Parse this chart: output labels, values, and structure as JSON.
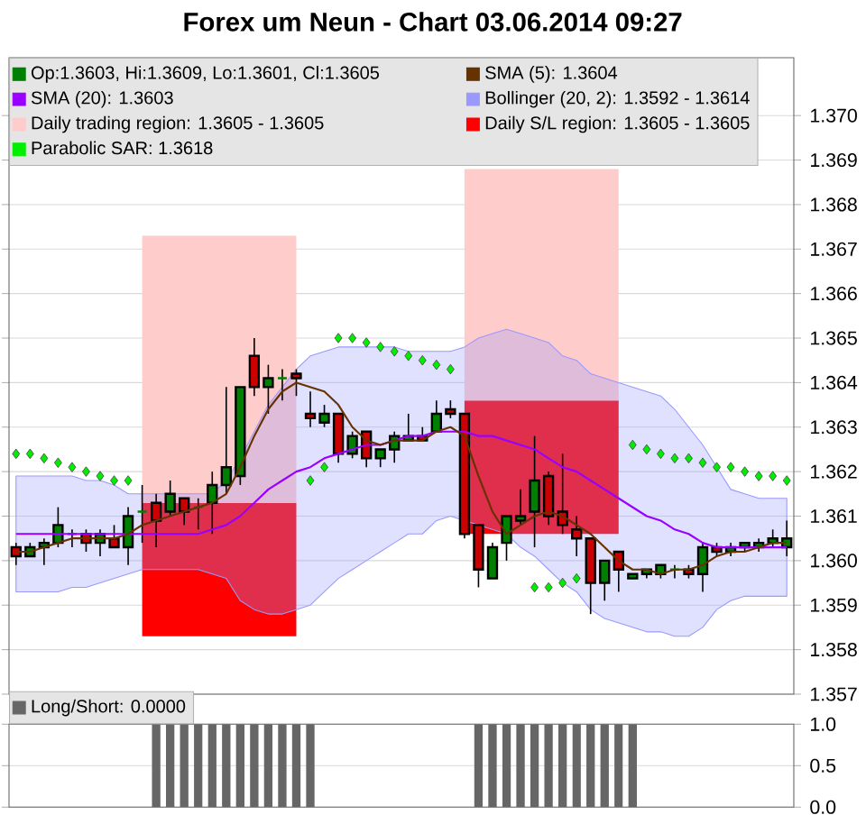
{
  "chart_data": [
    {
      "type": "candlestick",
      "title": "Forex um Neun - Chart 03.06.2014 09:27",
      "categories": [
        null,
        null,
        null,
        null,
        null,
        null,
        null,
        null,
        null,
        null,
        null,
        null,
        null,
        null,
        null,
        null,
        null,
        null,
        null,
        null,
        null,
        null,
        null,
        null,
        null,
        null,
        null,
        null,
        null,
        null,
        null,
        null,
        null,
        null,
        null,
        null,
        null,
        null,
        null,
        null,
        null,
        null,
        null,
        null,
        null,
        null,
        null,
        null,
        null,
        null,
        null,
        null,
        null,
        null,
        null,
        null
      ],
      "series": [
        {
          "type": "candlestick",
          "name": "Op:1.3603, Hi:1.3609, Lo:1.3601, Cl:1.3605",
          "color": "#008000",
          "colors": [
            "#cc0000",
            "#008000",
            "#008000",
            "#008000",
            "#008000",
            "#cc0000",
            "#008000",
            "#cc0000",
            "#008000",
            "#008000",
            "#cc0000",
            "#008000",
            "#cc0000",
            "#008000",
            "#008000",
            "#008000",
            "#008000",
            "#cc0000",
            "#008000",
            "#008000",
            "#cc0000",
            "#cc0000",
            "#008000",
            "#cc0000",
            "#008000",
            "#cc0000",
            "#008000",
            "#008000",
            "#008000",
            "#cc0000",
            "#008000",
            "#cc0000",
            "#cc0000",
            "#cc0000",
            "#008000",
            "#008000",
            "#008000",
            "#008000",
            "#cc0000",
            "#cc0000",
            "#cc0000",
            "#cc0000",
            "#008000",
            "#cc0000",
            "#008000",
            "#008000",
            "#008000",
            "#008000",
            "#cc0000",
            "#008000",
            "#cc0000",
            "#008000",
            "#008000",
            "#008000",
            "#008000",
            "#008000"
          ],
          "ohlc": [
            [
              1.3603,
              1.3604,
              1.3599,
              1.3601
            ],
            [
              1.3601,
              1.3604,
              1.3601,
              1.3603
            ],
            [
              1.3603,
              1.3605,
              1.3599,
              1.3604
            ],
            [
              1.3604,
              1.3612,
              1.3603,
              1.3608
            ],
            [
              1.3606,
              1.3607,
              1.3603,
              1.3606
            ],
            [
              1.3606,
              1.3607,
              1.3602,
              1.3604
            ],
            [
              1.3604,
              1.3607,
              1.3601,
              1.3606
            ],
            [
              1.3605,
              1.3608,
              1.3603,
              1.3603
            ],
            [
              1.3603,
              1.3612,
              1.3599,
              1.361
            ],
            [
              1.3611,
              1.3617,
              1.3604,
              1.3611
            ],
            [
              1.3613,
              1.3615,
              1.3603,
              1.3609
            ],
            [
              1.3611,
              1.3618,
              1.361,
              1.3615
            ],
            [
              1.3614,
              1.3614,
              1.3608,
              1.3611
            ],
            [
              1.3612,
              1.3614,
              1.3607,
              1.3612
            ],
            [
              1.3613,
              1.362,
              1.3606,
              1.3617
            ],
            [
              1.3617,
              1.3639,
              1.3615,
              1.3621
            ],
            [
              1.3619,
              1.3639,
              1.3617,
              1.3639
            ],
            [
              1.3646,
              1.365,
              1.3637,
              1.3639
            ],
            [
              1.3639,
              1.3644,
              1.3633,
              1.3641
            ],
            [
              1.3641,
              1.3643,
              1.3636,
              1.3641
            ],
            [
              1.3642,
              1.3643,
              1.3637,
              1.3641
            ],
            [
              1.3633,
              1.3638,
              1.363,
              1.3632
            ],
            [
              1.3631,
              1.3635,
              1.363,
              1.3633
            ],
            [
              1.3633,
              1.3633,
              1.3622,
              1.3624
            ],
            [
              1.3624,
              1.3629,
              1.3623,
              1.3628
            ],
            [
              1.3629,
              1.3629,
              1.3621,
              1.3623
            ],
            [
              1.3623,
              1.3625,
              1.3621,
              1.3625
            ],
            [
              1.3625,
              1.3629,
              1.3622,
              1.3628
            ],
            [
              1.3627,
              1.3633,
              1.3627,
              1.3628
            ],
            [
              1.3628,
              1.363,
              1.3627,
              1.3627
            ],
            [
              1.3629,
              1.3636,
              1.3629,
              1.3633
            ],
            [
              1.3634,
              1.3636,
              1.3632,
              1.3633
            ],
            [
              1.3633,
              1.3633,
              1.3605,
              1.3606
            ],
            [
              1.3608,
              1.3608,
              1.3594,
              1.3598
            ],
            [
              1.3596,
              1.3604,
              1.3596,
              1.3603
            ],
            [
              1.3604,
              1.361,
              1.36,
              1.361
            ],
            [
              1.3609,
              1.3616,
              1.3608,
              1.361
            ],
            [
              1.3611,
              1.3628,
              1.3603,
              1.3618
            ],
            [
              1.3619,
              1.362,
              1.3608,
              1.361
            ],
            [
              1.3611,
              1.3624,
              1.3606,
              1.3608
            ],
            [
              1.3607,
              1.361,
              1.3601,
              1.3605
            ],
            [
              1.3605,
              1.3605,
              1.3588,
              1.3595
            ],
            [
              1.3595,
              1.36,
              1.3591,
              1.36
            ],
            [
              1.3602,
              1.3602,
              1.3593,
              1.3598
            ],
            [
              1.3596,
              1.3597,
              1.3596,
              1.3597
            ],
            [
              1.3597,
              1.3598,
              1.3596,
              1.3598
            ],
            [
              1.3597,
              1.3599,
              1.3596,
              1.3599
            ],
            [
              1.3598,
              1.3599,
              1.3596,
              1.3598
            ],
            [
              1.3598,
              1.3599,
              1.3596,
              1.3597
            ],
            [
              1.3597,
              1.3604,
              1.3593,
              1.3603
            ],
            [
              1.3603,
              1.3604,
              1.3601,
              1.3602
            ],
            [
              1.3602,
              1.3604,
              1.3601,
              1.3603
            ],
            [
              1.3603,
              1.3604,
              1.3602,
              1.3604
            ],
            [
              1.3603,
              1.3605,
              1.3602,
              1.3604
            ],
            [
              1.3604,
              1.3607,
              1.3603,
              1.3605
            ],
            [
              1.3603,
              1.3609,
              1.3601,
              1.3605
            ]
          ]
        },
        {
          "type": "line",
          "name": "SMA (5): 1.3604",
          "color": "#663300",
          "values": [
            1.3602,
            1.3602,
            1.3603,
            1.3604,
            1.3605,
            1.3605,
            1.3605,
            1.3605,
            1.3606,
            1.3608,
            1.3609,
            1.361,
            1.3611,
            1.3612,
            1.3613,
            1.3615,
            1.3621,
            1.3628,
            1.3634,
            1.3638,
            1.364,
            1.3639,
            1.3638,
            1.3635,
            1.363,
            1.3627,
            1.3626,
            1.3627,
            1.3627,
            1.3627,
            1.3629,
            1.363,
            1.3628,
            1.3619,
            1.3611,
            1.3606,
            1.3608,
            1.361,
            1.3611,
            1.361,
            1.3608,
            1.3606,
            1.3603,
            1.36,
            1.3598,
            1.3598,
            1.3597,
            1.3598,
            1.3598,
            1.3599,
            1.3601,
            1.3602,
            1.3602,
            1.3603,
            1.3604,
            1.3604
          ]
        },
        {
          "type": "line",
          "name": "SMA (20): 1.3603",
          "color": "#9900ff",
          "values": [
            1.3606,
            1.3606,
            1.3606,
            1.3606,
            1.3606,
            1.3606,
            1.3606,
            1.3606,
            1.3606,
            1.3606,
            1.3606,
            1.3606,
            1.3606,
            1.3606,
            1.3607,
            1.3608,
            1.361,
            1.3613,
            1.3616,
            1.3618,
            1.362,
            1.3621,
            1.3623,
            1.3624,
            1.3625,
            1.3626,
            1.3626,
            1.3627,
            1.3628,
            1.3628,
            1.3629,
            1.3629,
            1.3629,
            1.3628,
            1.3628,
            1.3627,
            1.3626,
            1.3625,
            1.3623,
            1.3621,
            1.362,
            1.3618,
            1.3616,
            1.3614,
            1.3612,
            1.361,
            1.3609,
            1.3607,
            1.3606,
            1.3604,
            1.3603,
            1.3603,
            1.3603,
            1.3603,
            1.3603,
            1.3603
          ]
        },
        {
          "type": "area",
          "name": "Bollinger (20, 2): 1.3592 - 1.3614",
          "color": "#9999ff",
          "values": [
            null,
            null,
            null,
            null,
            null,
            null,
            null,
            null,
            null,
            null,
            null,
            null,
            null,
            null,
            null,
            null,
            null,
            null,
            null,
            null,
            null,
            null,
            null,
            null,
            null,
            null,
            null,
            null,
            null,
            null,
            null,
            null,
            null,
            null,
            null,
            null,
            null,
            null,
            null,
            null,
            null,
            null,
            null,
            null,
            null,
            null,
            null,
            null,
            null,
            null,
            null,
            null,
            null,
            null,
            null,
            null
          ],
          "upper": [
            1.3619,
            1.3619,
            1.3619,
            1.3619,
            1.3619,
            1.3618,
            1.3618,
            1.3617,
            1.3615,
            1.3615,
            1.3615,
            1.3615,
            1.3615,
            1.3615,
            1.3615,
            1.3618,
            1.3623,
            1.3629,
            1.3635,
            1.3639,
            1.3643,
            1.3646,
            1.3647,
            1.3648,
            1.3648,
            1.3648,
            1.3648,
            1.3648,
            1.3647,
            1.3647,
            1.3647,
            1.3647,
            1.3648,
            1.365,
            1.3651,
            1.3652,
            1.3651,
            1.365,
            1.3649,
            1.3646,
            1.3645,
            1.3642,
            1.3641,
            1.364,
            1.3639,
            1.3638,
            1.3637,
            1.3634,
            1.363,
            1.3626,
            1.3621,
            1.3616,
            1.3615,
            1.3614,
            1.3614,
            1.3614
          ],
          "lower": [
            1.3593,
            1.3593,
            1.3593,
            1.3593,
            1.3594,
            1.3594,
            1.3595,
            1.3596,
            1.3597,
            1.3598,
            1.3598,
            1.3598,
            1.3598,
            1.3598,
            1.3597,
            1.3596,
            1.3591,
            1.3589,
            1.3588,
            1.3588,
            1.3589,
            1.359,
            1.3593,
            1.3596,
            1.3598,
            1.36,
            1.3602,
            1.3604,
            1.3606,
            1.3606,
            1.3609,
            1.361,
            1.3609,
            1.3608,
            1.3607,
            1.3606,
            1.3603,
            1.3601,
            1.3598,
            1.3595,
            1.3593,
            1.3589,
            1.3587,
            1.3586,
            1.3585,
            1.3584,
            1.3584,
            1.3583,
            1.3583,
            1.3585,
            1.3589,
            1.3591,
            1.3592,
            1.3592,
            1.3592,
            1.3592
          ]
        },
        {
          "type": "area",
          "name": "Daily trading region: 1.3605 - 1.3605",
          "color": "#ffcccc",
          "values": [
            null,
            null,
            null,
            null,
            null,
            null,
            null,
            null,
            null,
            null,
            null,
            null,
            null,
            null,
            null,
            null,
            null,
            null,
            null,
            null,
            null,
            null,
            null,
            null,
            null,
            null,
            null,
            null,
            null,
            null,
            null,
            null,
            null,
            null,
            null,
            null,
            null,
            null,
            null,
            null,
            null,
            null,
            null,
            null,
            null,
            null,
            null,
            null,
            null,
            null,
            null,
            null,
            null,
            null,
            null,
            null
          ],
          "upper": [
            null,
            null,
            null,
            null,
            null,
            null,
            null,
            null,
            null,
            1.3673,
            1.3673,
            1.3673,
            1.3673,
            1.3673,
            1.3673,
            1.3673,
            1.3673,
            1.3673,
            1.3673,
            1.3673,
            1.3673,
            null,
            null,
            null,
            null,
            null,
            null,
            null,
            null,
            null,
            null,
            null,
            1.3688,
            1.3688,
            1.3688,
            1.3688,
            1.3688,
            1.3688,
            1.3688,
            1.3688,
            1.3688,
            1.3688,
            1.3688,
            1.3688,
            null,
            null,
            null,
            null,
            null,
            null,
            null,
            null,
            null,
            null,
            null,
            null
          ],
          "lower": [
            null,
            null,
            null,
            null,
            null,
            null,
            null,
            null,
            null,
            1.3613,
            1.3613,
            1.3613,
            1.3613,
            1.3613,
            1.3613,
            1.3613,
            1.3613,
            1.3613,
            1.3613,
            1.3613,
            1.3613,
            null,
            null,
            null,
            null,
            null,
            null,
            null,
            null,
            null,
            null,
            null,
            1.3636,
            1.3636,
            1.3636,
            1.3636,
            1.3636,
            1.3636,
            1.3636,
            1.3636,
            1.3636,
            1.3636,
            1.3636,
            1.3636,
            null,
            null,
            null,
            null,
            null,
            null,
            null,
            null,
            null,
            null,
            null,
            null
          ]
        },
        {
          "type": "area",
          "name": "Daily S/L region: 1.3605 - 1.3605",
          "color": "#ff0000",
          "values": [
            null,
            null,
            null,
            null,
            null,
            null,
            null,
            null,
            null,
            null,
            null,
            null,
            null,
            null,
            null,
            null,
            null,
            null,
            null,
            null,
            null,
            null,
            null,
            null,
            null,
            null,
            null,
            null,
            null,
            null,
            null,
            null,
            null,
            null,
            null,
            null,
            null,
            null,
            null,
            null,
            null,
            null,
            null,
            null,
            null,
            null,
            null,
            null,
            null,
            null,
            null,
            null,
            null,
            null,
            null,
            null
          ],
          "upper": [
            null,
            null,
            null,
            null,
            null,
            null,
            null,
            null,
            null,
            1.3613,
            1.3613,
            1.3613,
            1.3613,
            1.3613,
            1.3613,
            1.3613,
            1.3613,
            1.3613,
            1.3613,
            1.3613,
            1.3613,
            null,
            null,
            null,
            null,
            null,
            null,
            null,
            null,
            null,
            null,
            null,
            1.3636,
            1.3636,
            1.3636,
            1.3636,
            1.3636,
            1.3636,
            1.3636,
            1.3636,
            1.3636,
            1.3636,
            1.3636,
            1.3636,
            null,
            null,
            null,
            null,
            null,
            null,
            null,
            null,
            null,
            null,
            null,
            null
          ],
          "lower": [
            null,
            null,
            null,
            null,
            null,
            null,
            null,
            null,
            null,
            1.3583,
            1.3583,
            1.3583,
            1.3583,
            1.3583,
            1.3583,
            1.3583,
            1.3583,
            1.3583,
            1.3583,
            1.3583,
            1.3583,
            null,
            null,
            null,
            null,
            null,
            null,
            null,
            null,
            null,
            null,
            null,
            1.3606,
            1.3606,
            1.3606,
            1.3606,
            1.3606,
            1.3606,
            1.3606,
            1.3606,
            1.3606,
            1.3606,
            1.3606,
            1.3606,
            null,
            null,
            null,
            null,
            null,
            null,
            null,
            null,
            null,
            null,
            null,
            null
          ]
        },
        {
          "type": "scatter",
          "name": "Parabolic SAR: 1.3618",
          "color": "#00ee00",
          "marker": "diamond",
          "values": [
            1.3624,
            1.3624,
            1.3623,
            1.3622,
            1.3621,
            1.362,
            1.3619,
            1.3618,
            1.3618,
            null,
            null,
            null,
            null,
            null,
            null,
            null,
            null,
            null,
            null,
            null,
            null,
            1.3618,
            1.3621,
            1.365,
            1.365,
            1.3649,
            1.3648,
            1.3647,
            1.3646,
            1.3645,
            1.3644,
            1.3643,
            null,
            null,
            null,
            null,
            null,
            1.3594,
            1.3594,
            1.3595,
            1.3596,
            null,
            null,
            null,
            1.3626,
            1.3625,
            1.3624,
            1.3623,
            1.3623,
            1.3622,
            1.3621,
            1.3621,
            1.362,
            1.3619,
            1.3619,
            1.3618
          ]
        }
      ],
      "ylim": [
        1.357,
        1.3713
      ],
      "yticks": [
        1.357,
        1.358,
        1.359,
        {
          "value": 1.36,
          "label": "1.360"
        },
        1.361,
        1.362,
        1.363,
        1.364,
        1.365,
        1.366,
        1.367,
        1.368,
        1.369,
        {
          "value": 1.37,
          "label": "1.370"
        }
      ],
      "grid": "y",
      "legend": "top left",
      "tick_labels": "y"
    },
    {
      "type": "bar",
      "categories": [
        null,
        null,
        null,
        null,
        null,
        null,
        null,
        null,
        null,
        null,
        null,
        null,
        null,
        null,
        null,
        null,
        null,
        null,
        null,
        null,
        null,
        null,
        null,
        null,
        null,
        null,
        null,
        null,
        null,
        null,
        null,
        null,
        null,
        null,
        null,
        null,
        null,
        null,
        null,
        null,
        null,
        null,
        null,
        null,
        null,
        null,
        null,
        null,
        null,
        null,
        null,
        null,
        null,
        null,
        null,
        null
      ],
      "series": [
        {
          "name": "Long/Short: 0.0000",
          "color": "#666666",
          "values": [
            0,
            0,
            0,
            0,
            0,
            0,
            0,
            0,
            0,
            0,
            1,
            1,
            1,
            1,
            1,
            1,
            1,
            1,
            1,
            1,
            1,
            1,
            0,
            0,
            0,
            0,
            0,
            0,
            0,
            0,
            0,
            0,
            0,
            1,
            1,
            1,
            1,
            1,
            1,
            1,
            1,
            1,
            1,
            1,
            1,
            0,
            0,
            0,
            0,
            0,
            0,
            0,
            0,
            0,
            0,
            0
          ]
        }
      ],
      "ylim": [
        0,
        1
      ],
      "yticks": [
        {
          "value": 0,
          "label": "0.0"
        },
        0.5,
        {
          "value": 1,
          "label": "1.0"
        }
      ],
      "grid": "y",
      "legend": "top",
      "tick_labels": "y"
    }
  ]
}
